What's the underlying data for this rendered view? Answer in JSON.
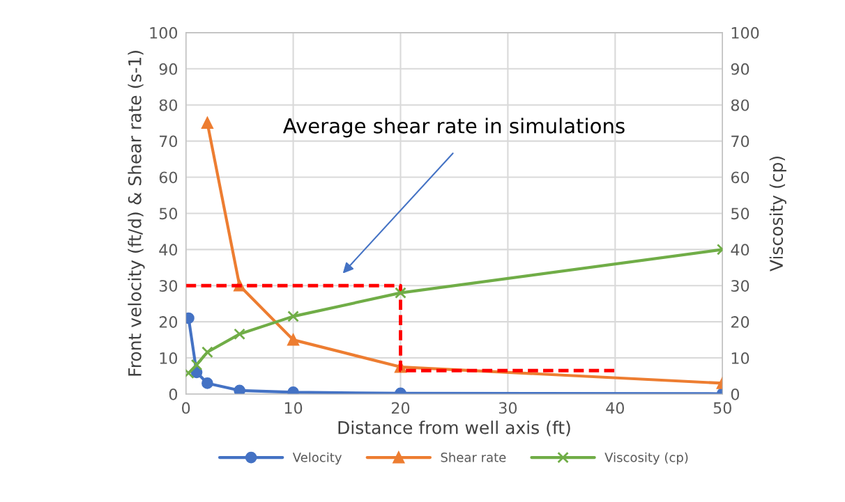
{
  "chart_data": {
    "type": "line",
    "xlabel": "Distance from well axis (ft)",
    "ylabel": "Front velocity (ft/d) & Shear rate (s-1)",
    "y2label": "Viscosity (cp)",
    "xlim": [
      0,
      50
    ],
    "xticks": [
      0,
      10,
      20,
      30,
      40,
      50
    ],
    "ylim": [
      0,
      100
    ],
    "yticks": [
      0,
      10,
      20,
      30,
      40,
      50,
      60,
      70,
      80,
      90,
      100
    ],
    "y2lim": [
      0,
      100
    ],
    "y2ticks": [
      0,
      10,
      20,
      30,
      40,
      50,
      60,
      70,
      80,
      90,
      100
    ],
    "x": [
      0.25,
      1,
      2,
      5,
      10,
      20,
      50
    ],
    "series": [
      {
        "name": "Velocity",
        "color": "#4472c4",
        "marker": "circle",
        "values": [
          21,
          6,
          3,
          1,
          0.5,
          0.2,
          0.1
        ]
      },
      {
        "name": "Shear rate",
        "color": "#ed7d31",
        "marker": "triangle",
        "values": [
          null,
          null,
          75,
          30,
          15,
          7.5,
          3
        ]
      },
      {
        "name": "Viscosity (cp)",
        "color": "#70ad47",
        "marker": "cross",
        "axis": "y2",
        "values": [
          5.8,
          8.1,
          11.6,
          16.6,
          21.5,
          28,
          40
        ]
      },
      {
        "type": "line",
        "color": "#ff0000",
        "line_style": "dashed",
        "marker": "none",
        "x": [
          0,
          20,
          20,
          40
        ],
        "values": [
          30,
          30,
          6.5,
          6.5
        ]
      }
    ],
    "annotations": [
      "Average shear rate in simulations"
    ],
    "grid": true,
    "legend": "bottom"
  }
}
